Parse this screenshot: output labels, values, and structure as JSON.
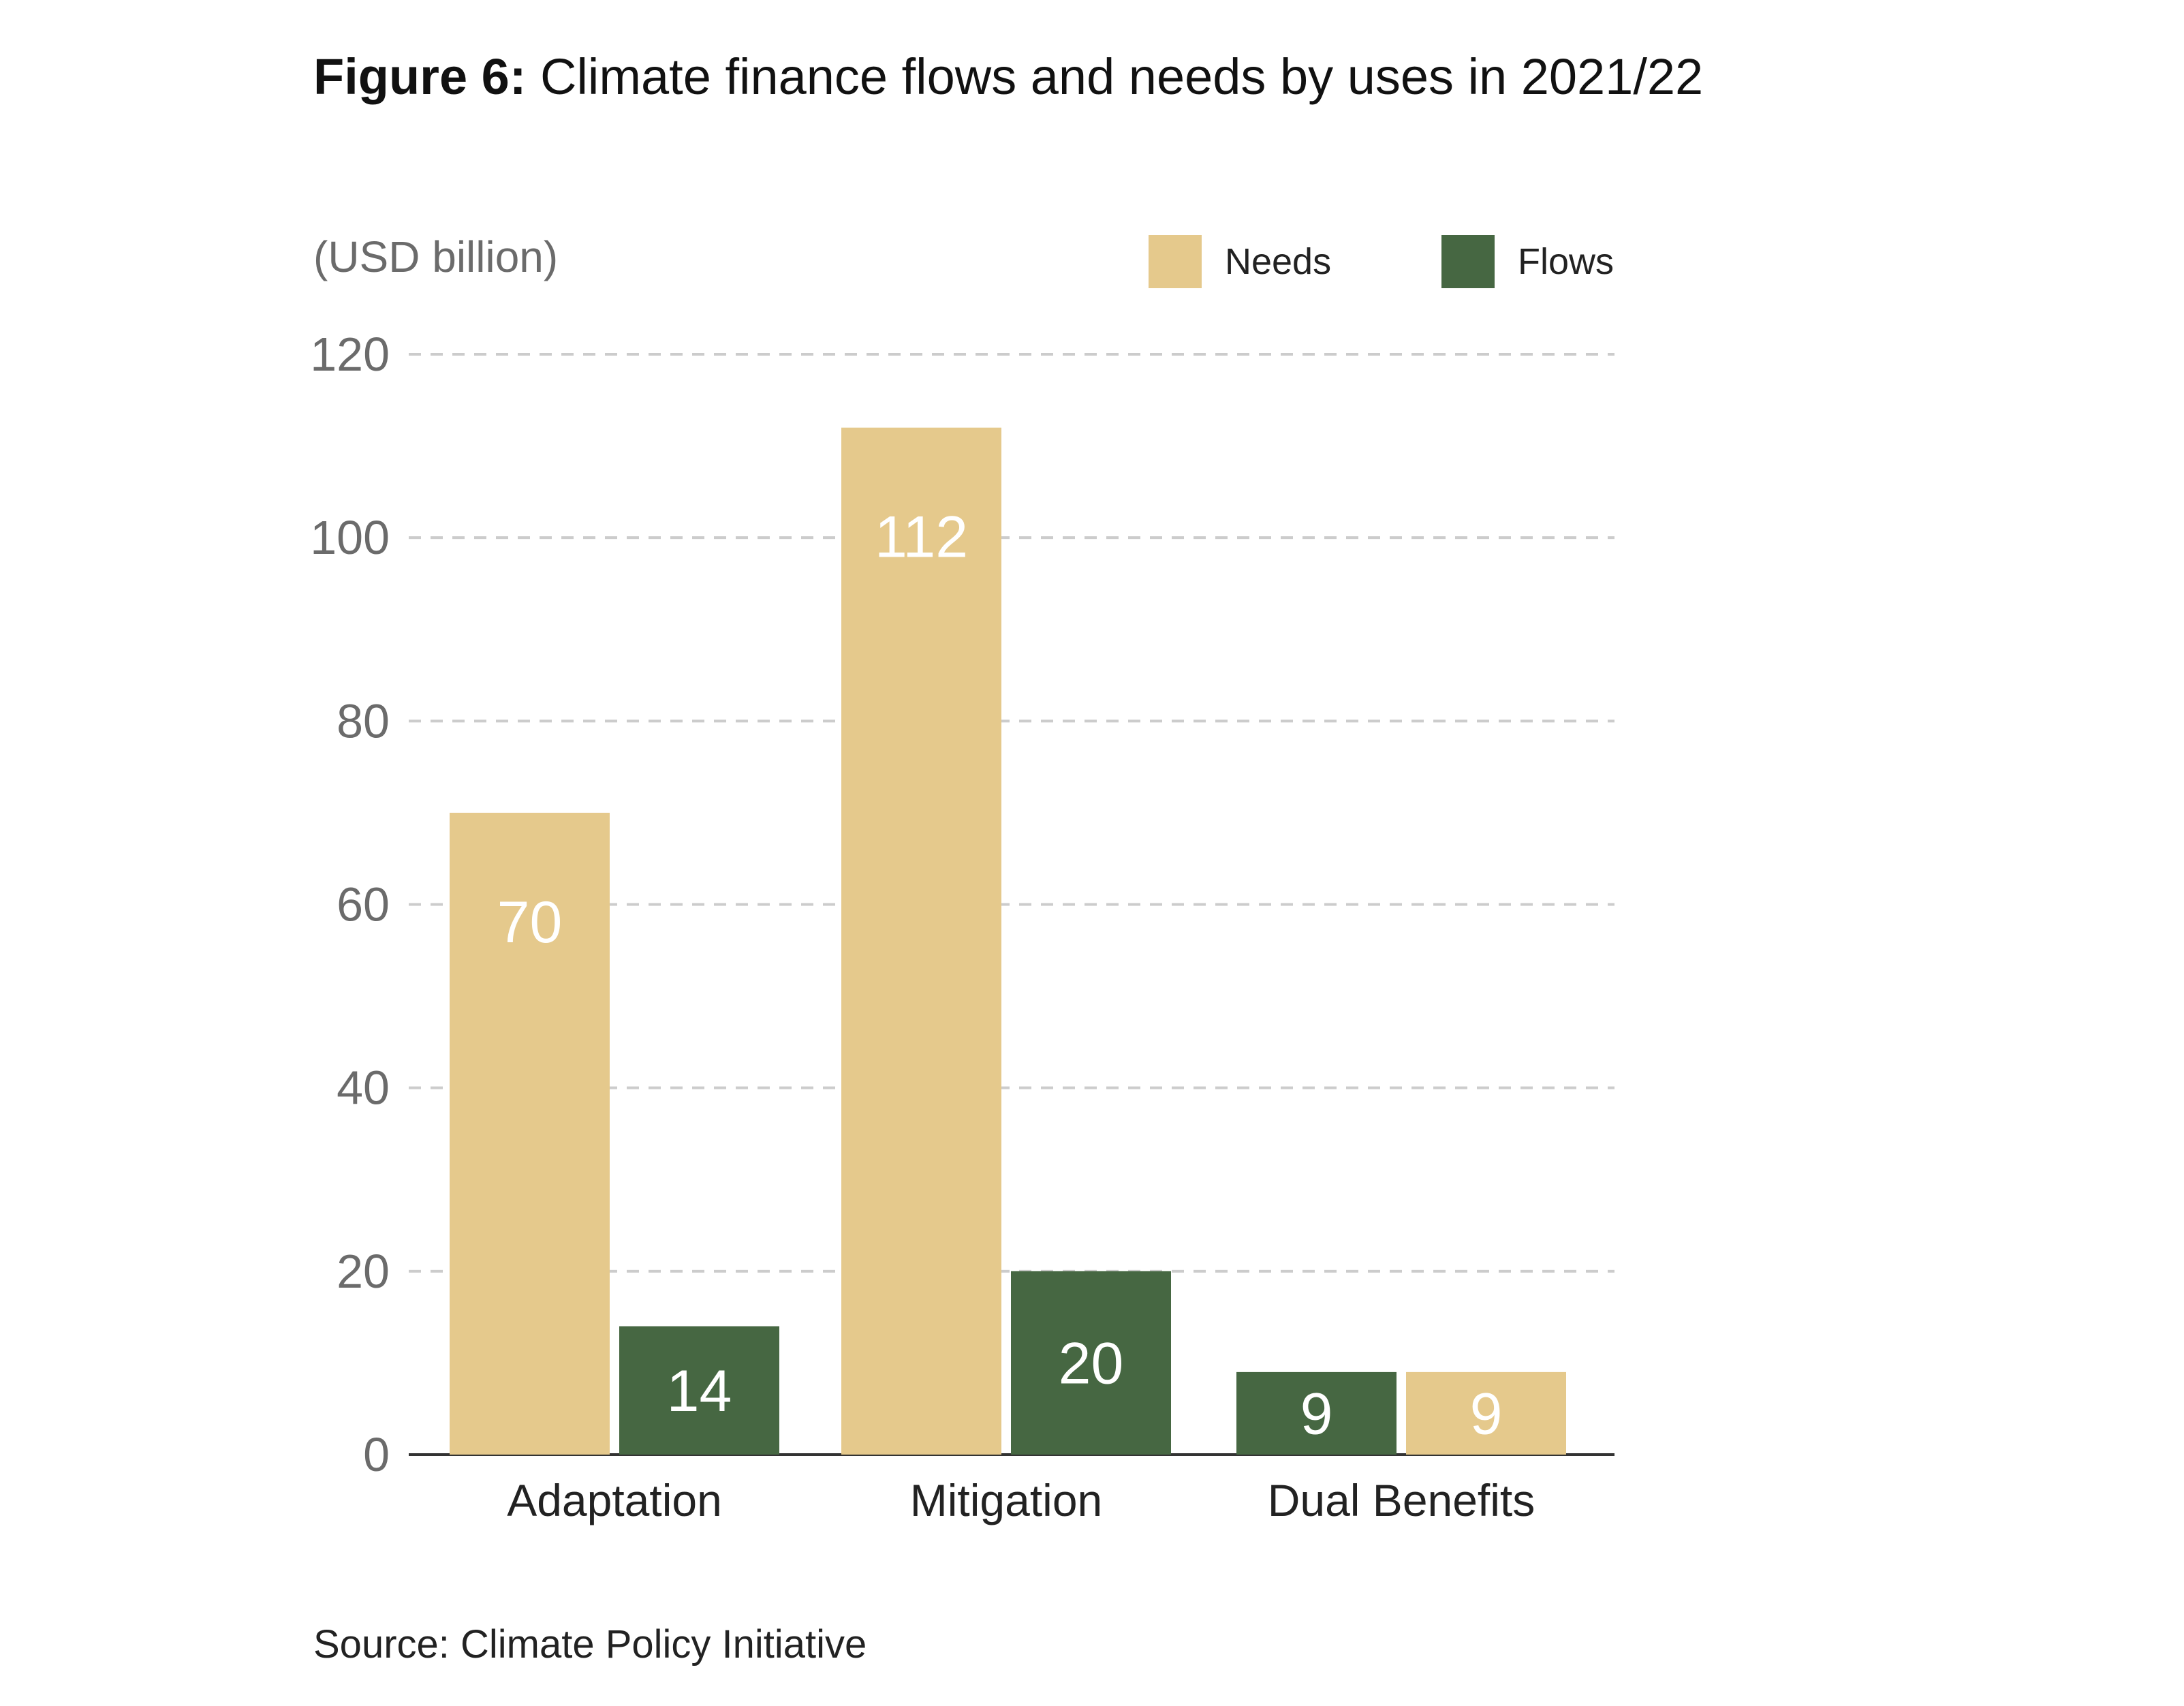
{
  "title_prefix": "Figure 6:",
  "title_text": " Climate finance flows and needs by uses in 2021/22",
  "unit_label": "(USD billion)",
  "source": "Source: Climate Policy Initiative",
  "colors": {
    "needs": "#e5c98c",
    "flows": "#466742",
    "grid": "#cccccc",
    "axis": "#333333",
    "tick_text": "#6b6b6b",
    "bar_label": "#ffffff"
  },
  "legend": [
    {
      "label": "Needs",
      "color": "#e5c98c"
    },
    {
      "label": "Flows",
      "color": "#466742"
    }
  ],
  "chart_data": {
    "type": "bar",
    "title": "Climate finance flows and needs by uses in 2021/22",
    "ylabel": "(USD billion)",
    "xlabel": "",
    "categories": [
      "Adaptation",
      "Mitigation",
      "Dual Benefits"
    ],
    "ylim": [
      0,
      120
    ],
    "yticks": [
      0,
      20,
      40,
      60,
      80,
      100,
      120
    ],
    "grid": true,
    "legend_position": "top-right",
    "series": [
      {
        "name": "Needs",
        "values": [
          70,
          112,
          9
        ]
      },
      {
        "name": "Flows",
        "values": [
          14,
          20,
          9
        ]
      }
    ],
    "bar_order": [
      [
        "Needs",
        "Flows"
      ],
      [
        "Needs",
        "Flows"
      ],
      [
        "Flows",
        "Needs"
      ]
    ]
  }
}
